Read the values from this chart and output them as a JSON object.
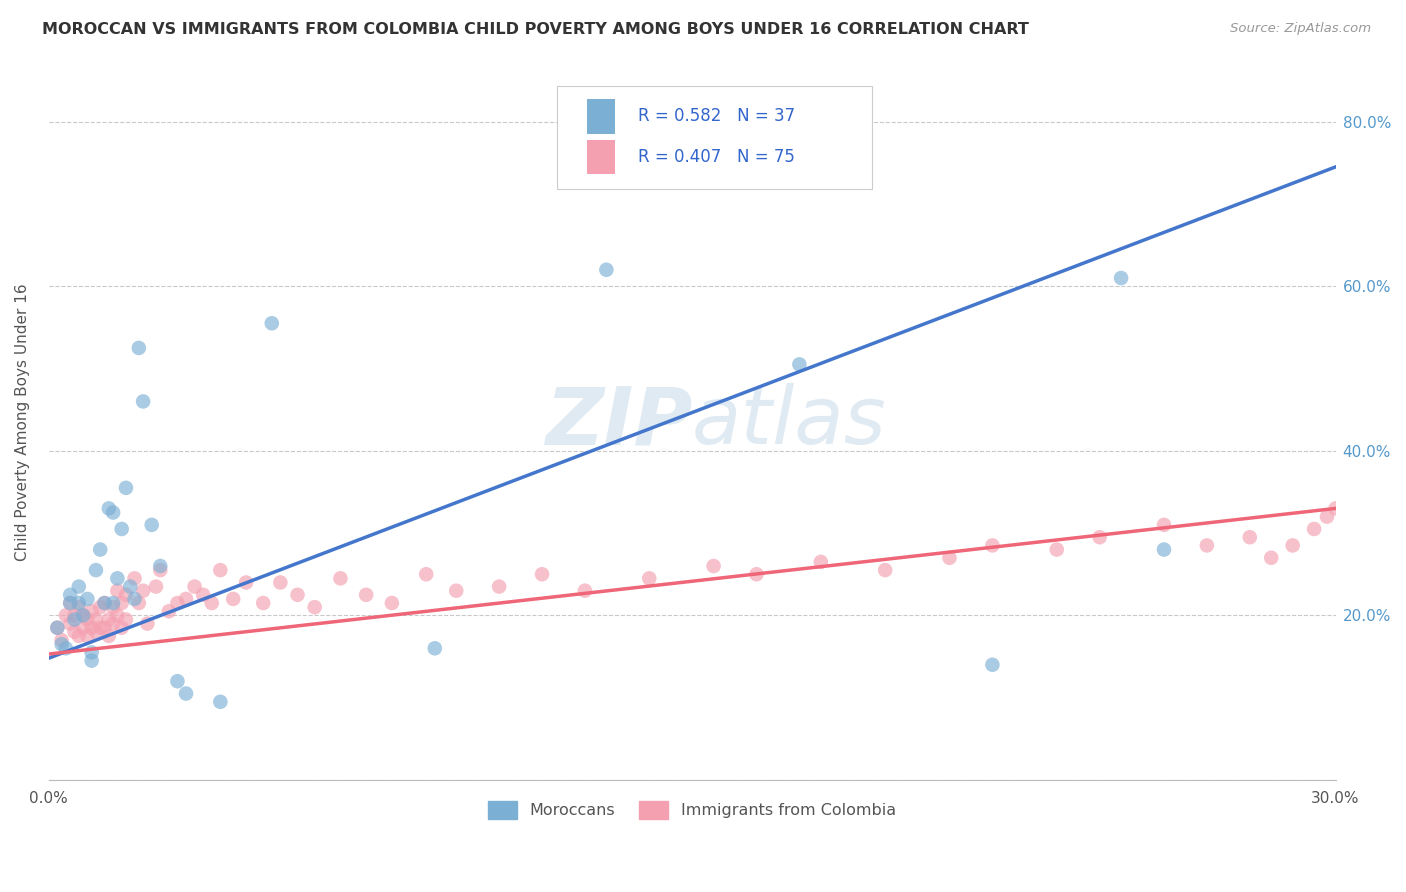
{
  "title": "MOROCCAN VS IMMIGRANTS FROM COLOMBIA CHILD POVERTY AMONG BOYS UNDER 16 CORRELATION CHART",
  "source": "Source: ZipAtlas.com",
  "ylabel": "Child Poverty Among Boys Under 16",
  "xmin": 0.0,
  "xmax": 0.3,
  "ymin": 0.0,
  "ymax": 0.87,
  "xticks": [
    0.0,
    0.05,
    0.1,
    0.15,
    0.2,
    0.25,
    0.3
  ],
  "xtick_labels": [
    "0.0%",
    "",
    "",
    "",
    "",
    "",
    "30.0%"
  ],
  "yticks": [
    0.0,
    0.2,
    0.4,
    0.6,
    0.8
  ],
  "ytick_labels": [
    "",
    "20.0%",
    "40.0%",
    "60.0%",
    "80.0%"
  ],
  "moroccans_R": 0.582,
  "moroccans_N": 37,
  "colombia_R": 0.407,
  "colombia_N": 75,
  "blue_color": "#7BAFD4",
  "pink_color": "#F4A0B0",
  "blue_line_color": "#4477CC",
  "pink_line_color": "#EE6677",
  "watermark_color": "#C8DAEA",
  "moroccans_x": [
    0.002,
    0.003,
    0.004,
    0.005,
    0.005,
    0.006,
    0.007,
    0.007,
    0.008,
    0.009,
    0.01,
    0.01,
    0.011,
    0.012,
    0.013,
    0.014,
    0.015,
    0.015,
    0.016,
    0.017,
    0.018,
    0.019,
    0.02,
    0.021,
    0.022,
    0.024,
    0.026,
    0.03,
    0.032,
    0.04,
    0.052,
    0.09,
    0.13,
    0.175,
    0.22,
    0.25,
    0.26
  ],
  "moroccans_y": [
    0.185,
    0.165,
    0.16,
    0.215,
    0.225,
    0.195,
    0.215,
    0.235,
    0.2,
    0.22,
    0.155,
    0.145,
    0.255,
    0.28,
    0.215,
    0.33,
    0.215,
    0.325,
    0.245,
    0.305,
    0.355,
    0.235,
    0.22,
    0.525,
    0.46,
    0.31,
    0.26,
    0.12,
    0.105,
    0.095,
    0.555,
    0.16,
    0.62,
    0.505,
    0.14,
    0.61,
    0.28
  ],
  "colombia_x": [
    0.002,
    0.003,
    0.004,
    0.005,
    0.005,
    0.006,
    0.006,
    0.007,
    0.007,
    0.008,
    0.008,
    0.009,
    0.009,
    0.01,
    0.01,
    0.011,
    0.011,
    0.012,
    0.012,
    0.013,
    0.013,
    0.014,
    0.014,
    0.015,
    0.015,
    0.016,
    0.016,
    0.017,
    0.017,
    0.018,
    0.018,
    0.02,
    0.021,
    0.022,
    0.023,
    0.025,
    0.026,
    0.028,
    0.03,
    0.032,
    0.034,
    0.036,
    0.038,
    0.04,
    0.043,
    0.046,
    0.05,
    0.054,
    0.058,
    0.062,
    0.068,
    0.074,
    0.08,
    0.088,
    0.095,
    0.105,
    0.115,
    0.125,
    0.14,
    0.155,
    0.165,
    0.18,
    0.195,
    0.21,
    0.22,
    0.235,
    0.245,
    0.26,
    0.27,
    0.28,
    0.285,
    0.29,
    0.295,
    0.298,
    0.3
  ],
  "colombia_y": [
    0.185,
    0.17,
    0.2,
    0.19,
    0.215,
    0.18,
    0.2,
    0.175,
    0.21,
    0.185,
    0.2,
    0.175,
    0.195,
    0.185,
    0.205,
    0.18,
    0.195,
    0.185,
    0.21,
    0.185,
    0.215,
    0.195,
    0.175,
    0.19,
    0.21,
    0.23,
    0.2,
    0.185,
    0.215,
    0.225,
    0.195,
    0.245,
    0.215,
    0.23,
    0.19,
    0.235,
    0.255,
    0.205,
    0.215,
    0.22,
    0.235,
    0.225,
    0.215,
    0.255,
    0.22,
    0.24,
    0.215,
    0.24,
    0.225,
    0.21,
    0.245,
    0.225,
    0.215,
    0.25,
    0.23,
    0.235,
    0.25,
    0.23,
    0.245,
    0.26,
    0.25,
    0.265,
    0.255,
    0.27,
    0.285,
    0.28,
    0.295,
    0.31,
    0.285,
    0.295,
    0.27,
    0.285,
    0.305,
    0.32,
    0.33
  ],
  "blue_line_x0": 0.0,
  "blue_line_y0": 0.148,
  "blue_line_x1": 0.3,
  "blue_line_y1": 0.745,
  "pink_line_x0": 0.0,
  "pink_line_y0": 0.153,
  "pink_line_x1": 0.3,
  "pink_line_y1": 0.33
}
